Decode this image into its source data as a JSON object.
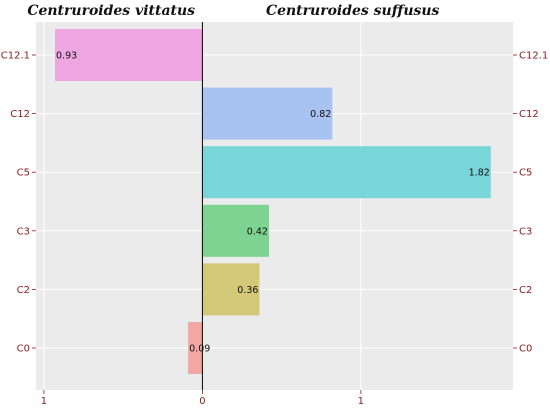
{
  "chart_data": {
    "type": "bar",
    "orientation": "horizontal-diverging",
    "left_title": "Centruroides vittatus",
    "right_title": "Centruroides suffusus",
    "categories": [
      "C12.1",
      "C12",
      "C5",
      "C3",
      "C2",
      "C0"
    ],
    "series": [
      {
        "values": [
          0.93,
          0.82,
          1.82,
          0.42,
          0.36,
          0.09
        ],
        "side": [
          "left",
          "right",
          "right",
          "right",
          "right",
          "left"
        ],
        "labels": [
          "0.93",
          "0.82",
          "1.82",
          "0.42",
          "0.36",
          "0.09"
        ],
        "colors": [
          "#eea6e2",
          "#a8c2f2",
          "#78d5d8",
          "#7dd38f",
          "#d3c978",
          "#f1a7a3"
        ]
      }
    ],
    "x_ticks": [
      {
        "value": -1,
        "label": "1"
      },
      {
        "value": 0,
        "label": "0"
      },
      {
        "value": 1,
        "label": "1"
      }
    ],
    "xlim": [
      -1.05,
      1.96
    ],
    "grid": true,
    "panel_background": "#ebebeb",
    "label_color": "#8b1a1a"
  }
}
